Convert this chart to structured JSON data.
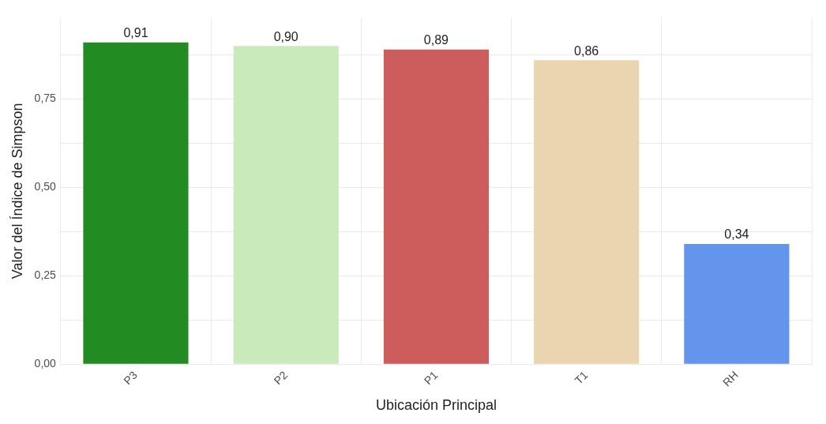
{
  "chart_data": {
    "type": "bar",
    "xlabel": "Ubicación Principal",
    "ylabel": "Valor del Índice de Simpson",
    "categories": [
      "P3",
      "P2",
      "P1",
      "T1",
      "RH"
    ],
    "values": [
      0.91,
      0.9,
      0.89,
      0.86,
      0.34
    ],
    "colors": [
      "#228b22",
      "#c9eabb",
      "#cd5c5c",
      "#ead5b0",
      "#6495ed"
    ],
    "value_labels": [
      "0,91",
      "0,90",
      "0,89",
      "0,86",
      "0,34"
    ],
    "ylim": [
      0,
      0.98
    ],
    "yticks": [
      {
        "value": 0,
        "label": "0,00"
      },
      {
        "value": 0.125,
        "label": null
      },
      {
        "value": 0.25,
        "label": "0,25"
      },
      {
        "value": 0.375,
        "label": null
      },
      {
        "value": 0.5,
        "label": "0,50"
      },
      {
        "value": 0.625,
        "label": null
      },
      {
        "value": 0.75,
        "label": "0,75"
      },
      {
        "value": 0.875,
        "label": null
      }
    ],
    "grid": true,
    "legend": false
  }
}
